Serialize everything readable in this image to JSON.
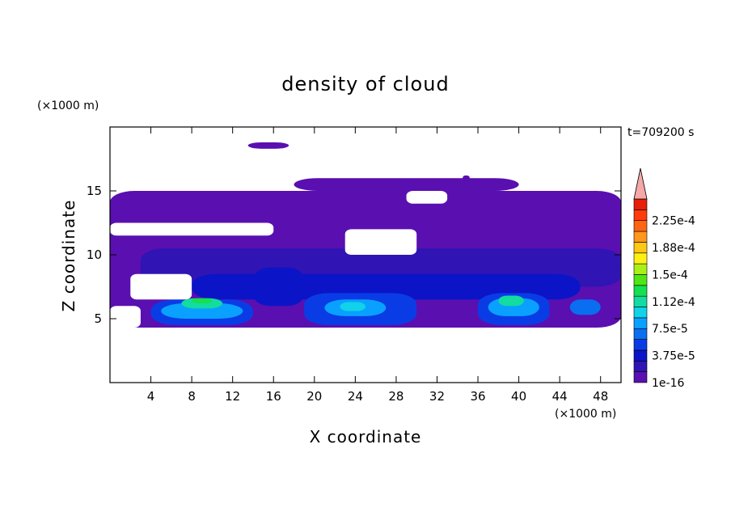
{
  "chart_data": {
    "type": "heatmap",
    "title": "density of cloud",
    "xlabel": "X coordinate",
    "ylabel": "Z coordinate",
    "x_unit": "(×1000 m)",
    "y_unit": "(×1000 m)",
    "time_label": "t=709200 s",
    "xlim": [
      0,
      50
    ],
    "ylim": [
      0,
      20
    ],
    "x_ticks": [
      4,
      8,
      12,
      16,
      20,
      24,
      28,
      32,
      36,
      40,
      44,
      48
    ],
    "y_ticks": [
      5,
      10,
      15
    ],
    "colorbar": {
      "labels": [
        "1e-16",
        "3.75e-5",
        "7.5e-5",
        "1.12e-4",
        "1.5e-4",
        "1.88e-4",
        "2.25e-4"
      ],
      "level_colors": [
        "#5a0fb0",
        "#3014b4",
        "#0c14c8",
        "#0a3ce6",
        "#0a6ef0",
        "#0aa0ff",
        "#10d2e8",
        "#12dca0",
        "#14e050",
        "#50e614",
        "#aaf014",
        "#fff014",
        "#ffc814",
        "#ff961e",
        "#ff6414",
        "#ff3c0c",
        "#e61e0a"
      ],
      "extend_color": "#f4a8a8"
    },
    "cells": [
      {
        "x": [
          0,
          50
        ],
        "z": [
          4.3,
          15.0
        ],
        "level": 0
      },
      {
        "x": [
          13.5,
          17.5
        ],
        "z": [
          18.3,
          18.8
        ],
        "level": 0
      },
      {
        "x": [
          34.5,
          35.2
        ],
        "z": [
          15.8,
          16.2
        ],
        "level": 0
      },
      {
        "x": [
          18,
          40
        ],
        "z": [
          15.0,
          16.0
        ],
        "level": 0
      },
      {
        "x": [
          3,
          50
        ],
        "z": [
          7.5,
          10.5
        ],
        "level": 1
      },
      {
        "x": [
          8,
          46
        ],
        "z": [
          6.5,
          8.5
        ],
        "level": 2
      },
      {
        "x": [
          4,
          14
        ],
        "z": [
          4.5,
          6.5
        ],
        "level": 3
      },
      {
        "x": [
          5,
          13
        ],
        "z": [
          5.0,
          6.2
        ],
        "level": 5
      },
      {
        "x": [
          7,
          11
        ],
        "z": [
          5.8,
          6.6
        ],
        "level": 7
      },
      {
        "x": [
          8,
          10
        ],
        "z": [
          6.2,
          6.6
        ],
        "level": 8
      },
      {
        "x": [
          19,
          30
        ],
        "z": [
          4.5,
          7.0
        ],
        "level": 3
      },
      {
        "x": [
          21,
          27
        ],
        "z": [
          5.2,
          6.5
        ],
        "level": 5
      },
      {
        "x": [
          22.5,
          25
        ],
        "z": [
          5.6,
          6.3
        ],
        "level": 6
      },
      {
        "x": [
          36,
          43
        ],
        "z": [
          4.5,
          7.0
        ],
        "level": 3
      },
      {
        "x": [
          37,
          42
        ],
        "z": [
          5.2,
          6.6
        ],
        "level": 5
      },
      {
        "x": [
          38,
          40.5
        ],
        "z": [
          6.0,
          6.8
        ],
        "level": 7
      },
      {
        "x": [
          45,
          48
        ],
        "z": [
          5.3,
          6.5
        ],
        "level": 4
      },
      {
        "x": [
          14,
          19
        ],
        "z": [
          6.0,
          9.0
        ],
        "level": 2
      }
    ],
    "gaps": [
      {
        "x": [
          23,
          30
        ],
        "z": [
          10.0,
          12.0
        ]
      },
      {
        "x": [
          0,
          16
        ],
        "z": [
          11.5,
          12.5
        ]
      },
      {
        "x": [
          2,
          8
        ],
        "z": [
          6.5,
          8.5
        ]
      },
      {
        "x": [
          0,
          3
        ],
        "z": [
          4.3,
          6.0
        ]
      },
      {
        "x": [
          29,
          33
        ],
        "z": [
          14.0,
          15.0
        ]
      }
    ]
  }
}
